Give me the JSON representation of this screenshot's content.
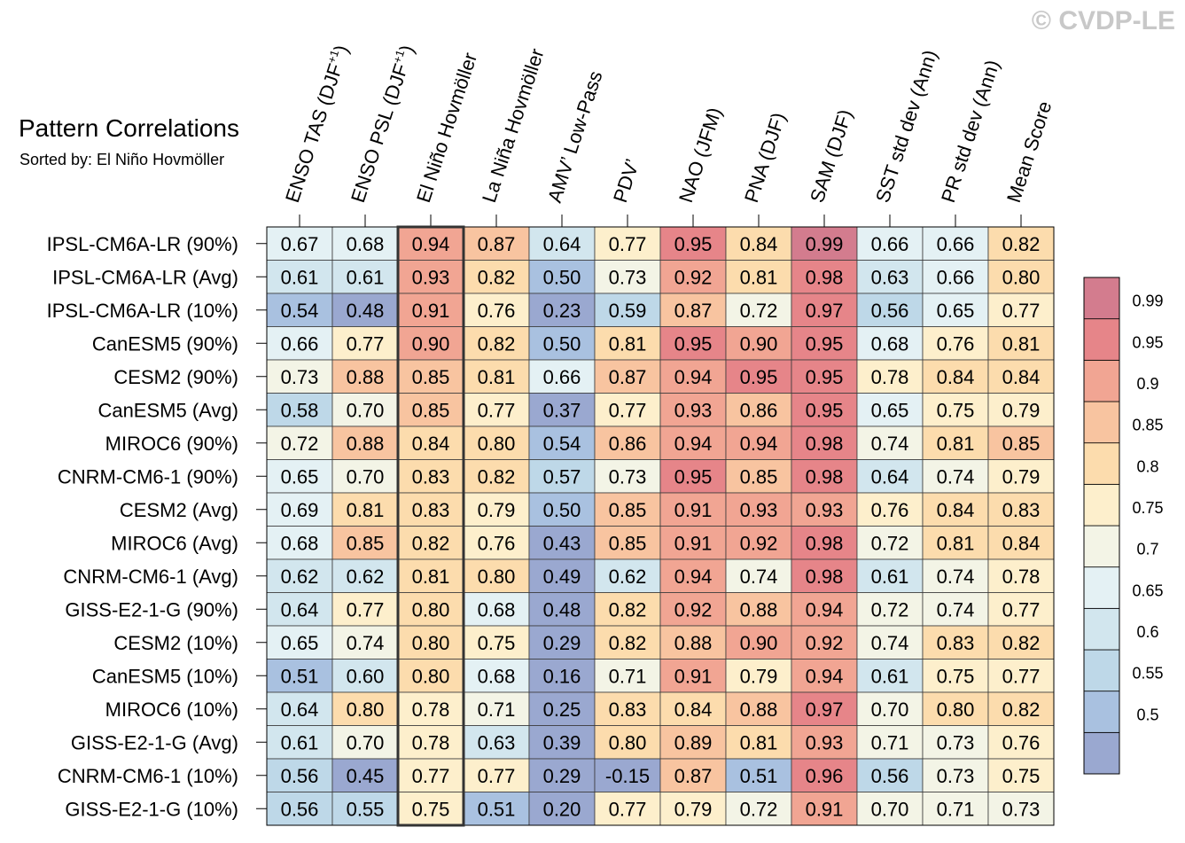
{
  "watermark": "© CVDP-LE",
  "chart_data": {
    "type": "heatmap",
    "title": "Pattern Correlations",
    "subtitle": "Sorted by: El Niño Hovmöller",
    "highlight_column": 2,
    "columns": [
      {
        "pre": "ENSO TAS (DJF",
        "sup": "+1",
        "post": ")"
      },
      {
        "pre": "ENSO PSL (DJF",
        "sup": "+1",
        "post": ")"
      },
      {
        "pre": "El Niño Hovmöller"
      },
      {
        "pre": "La Niña Hovmöller"
      },
      {
        "pre": "AMV’ Low-Pass"
      },
      {
        "pre": "PDV’"
      },
      {
        "pre": "NAO (JFM)"
      },
      {
        "pre": "PNA (DJF)"
      },
      {
        "pre": "SAM (DJF)"
      },
      {
        "pre": "SST std dev (Ann)"
      },
      {
        "pre": "PR std dev (Ann)"
      },
      {
        "pre": "Mean Score"
      }
    ],
    "rows": [
      "IPSL-CM6A-LR (90%)",
      "IPSL-CM6A-LR (Avg)",
      "IPSL-CM6A-LR (10%)",
      "CanESM5 (90%)",
      "CESM2 (90%)",
      "CanESM5 (Avg)",
      "MIROC6 (90%)",
      "CNRM-CM6-1 (90%)",
      "CESM2 (Avg)",
      "MIROC6 (Avg)",
      "CNRM-CM6-1 (Avg)",
      "GISS-E2-1-G (90%)",
      "CESM2 (10%)",
      "CanESM5 (10%)",
      "MIROC6 (10%)",
      "GISS-E2-1-G (Avg)",
      "CNRM-CM6-1 (10%)",
      "GISS-E2-1-G (10%)"
    ],
    "values": [
      [
        "0.67",
        "0.68",
        "0.94",
        "0.87",
        "0.64",
        "0.77",
        "0.95",
        "0.84",
        "0.99",
        "0.66",
        "0.66",
        "0.82"
      ],
      [
        "0.61",
        "0.61",
        "0.93",
        "0.82",
        "0.50",
        "0.73",
        "0.92",
        "0.81",
        "0.98",
        "0.63",
        "0.66",
        "0.80"
      ],
      [
        "0.54",
        "0.48",
        "0.91",
        "0.76",
        "0.23",
        "0.59",
        "0.87",
        "0.72",
        "0.97",
        "0.56",
        "0.65",
        "0.77"
      ],
      [
        "0.66",
        "0.77",
        "0.90",
        "0.82",
        "0.50",
        "0.81",
        "0.95",
        "0.90",
        "0.95",
        "0.68",
        "0.76",
        "0.81"
      ],
      [
        "0.73",
        "0.88",
        "0.85",
        "0.81",
        "0.66",
        "0.87",
        "0.94",
        "0.95",
        "0.95",
        "0.78",
        "0.84",
        "0.84"
      ],
      [
        "0.58",
        "0.70",
        "0.85",
        "0.77",
        "0.37",
        "0.77",
        "0.93",
        "0.86",
        "0.95",
        "0.65",
        "0.75",
        "0.79"
      ],
      [
        "0.72",
        "0.88",
        "0.84",
        "0.80",
        "0.54",
        "0.86",
        "0.94",
        "0.94",
        "0.98",
        "0.74",
        "0.81",
        "0.85"
      ],
      [
        "0.65",
        "0.70",
        "0.83",
        "0.82",
        "0.57",
        "0.73",
        "0.95",
        "0.85",
        "0.98",
        "0.64",
        "0.74",
        "0.79"
      ],
      [
        "0.69",
        "0.81",
        "0.83",
        "0.79",
        "0.50",
        "0.85",
        "0.91",
        "0.93",
        "0.93",
        "0.76",
        "0.84",
        "0.83"
      ],
      [
        "0.68",
        "0.85",
        "0.82",
        "0.76",
        "0.43",
        "0.85",
        "0.91",
        "0.92",
        "0.98",
        "0.72",
        "0.81",
        "0.84"
      ],
      [
        "0.62",
        "0.62",
        "0.81",
        "0.80",
        "0.49",
        "0.62",
        "0.94",
        "0.74",
        "0.98",
        "0.61",
        "0.74",
        "0.78"
      ],
      [
        "0.64",
        "0.77",
        "0.80",
        "0.68",
        "0.48",
        "0.82",
        "0.92",
        "0.88",
        "0.94",
        "0.72",
        "0.74",
        "0.77"
      ],
      [
        "0.65",
        "0.74",
        "0.80",
        "0.75",
        "0.29",
        "0.82",
        "0.88",
        "0.90",
        "0.92",
        "0.74",
        "0.83",
        "0.82"
      ],
      [
        "0.51",
        "0.60",
        "0.80",
        "0.68",
        "0.16",
        "0.71",
        "0.91",
        "0.79",
        "0.94",
        "0.61",
        "0.75",
        "0.77"
      ],
      [
        "0.64",
        "0.80",
        "0.78",
        "0.71",
        "0.25",
        "0.83",
        "0.84",
        "0.88",
        "0.97",
        "0.70",
        "0.80",
        "0.82"
      ],
      [
        "0.61",
        "0.70",
        "0.78",
        "0.63",
        "0.39",
        "0.80",
        "0.89",
        "0.81",
        "0.93",
        "0.71",
        "0.73",
        "0.76"
      ],
      [
        "0.56",
        "0.45",
        "0.77",
        "0.77",
        "0.29",
        "-0.15",
        "0.87",
        "0.51",
        "0.96",
        "0.56",
        "0.73",
        "0.75"
      ],
      [
        "0.56",
        "0.55",
        "0.75",
        "0.51",
        "0.20",
        "0.77",
        "0.79",
        "0.72",
        "0.91",
        "0.70",
        "0.71",
        "0.73"
      ]
    ],
    "colorbar": {
      "labels": [
        "0.99",
        "0.95",
        "0.9",
        "0.85",
        "0.8",
        "0.75",
        "0.7",
        "0.65",
        "0.6",
        "0.55",
        "0.5"
      ],
      "thresholds": [
        0.5,
        0.55,
        0.6,
        0.65,
        0.7,
        0.75,
        0.8,
        0.85,
        0.9,
        0.95,
        0.99
      ],
      "colors": [
        "#9aa8d0",
        "#a9c1e0",
        "#bed8e8",
        "#d2e6ee",
        "#e4f1f4",
        "#f3f4e6",
        "#fdefcc",
        "#fcdcad",
        "#f8c4a0",
        "#f1a593",
        "#e68589",
        "#d37c8e"
      ]
    }
  }
}
